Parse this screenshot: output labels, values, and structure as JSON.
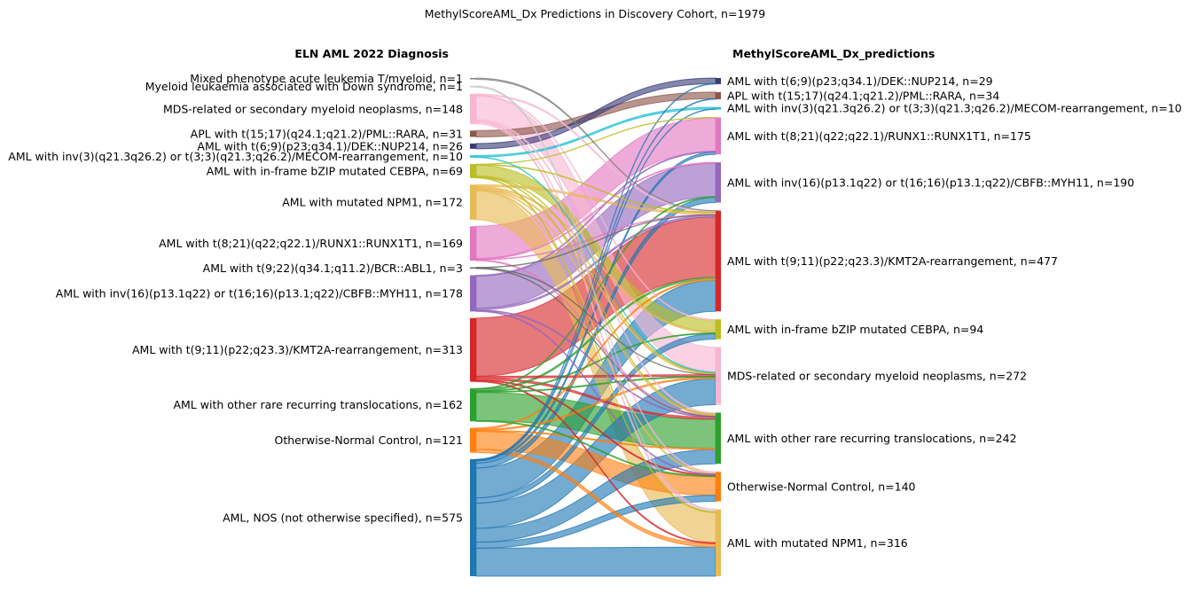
{
  "chart_data": {
    "type": "sankey",
    "title": "MethylScoreAML_Dx Predictions in Discovery Cohort, n=1979",
    "left_header": "ELN AML 2022 Diagnosis",
    "right_header": "MethylScoreAML_Dx_predictions",
    "left_nodes": [
      {
        "id": "MPAL",
        "label": "Mixed phenotype acute leukemia T/myeloid, n=1",
        "n": 1,
        "color": "#7f7f7f"
      },
      {
        "id": "DOWN",
        "label": "Myeloid leukaemia associated with Down syndrome, n=1",
        "n": 1,
        "color": "#c7c7c7"
      },
      {
        "id": "MDS",
        "label": "MDS-related or secondary myeloid neoplasms, n=148",
        "n": 148,
        "color": "#f7b6d2"
      },
      {
        "id": "APL",
        "label": "APL with t(15;17)(q24.1;q21.2)/PML::RARA, n=31",
        "n": 31,
        "color": "#8c564b"
      },
      {
        "id": "DEK",
        "label": "AML with t(6;9)(p23;q34.1)/DEK::NUP214, n=26",
        "n": 26,
        "color": "#393b79"
      },
      {
        "id": "INV3",
        "label": "AML with inv(3)(q21.3q26.2) or t(3;3)(q21.3;q26.2)/MECOM-rearrangement, n=10",
        "n": 10,
        "color": "#17becf"
      },
      {
        "id": "CEBPA",
        "label": "AML with in-frame bZIP mutated CEBPA, n=69",
        "n": 69,
        "color": "#bcbd22"
      },
      {
        "id": "NPM1",
        "label": "AML with mutated NPM1, n=172",
        "n": 172,
        "color": "#e7ba52"
      },
      {
        "id": "RUNX",
        "label": "AML with t(8;21)(q22;q22.1)/RUNX1::RUNX1T1, n=169",
        "n": 169,
        "color": "#e377c2"
      },
      {
        "id": "BCR",
        "label": "AML with t(9;22)(q34.1;q11.2)/BCR::ABL1, n=3",
        "n": 3,
        "color": "#636363"
      },
      {
        "id": "CBFB",
        "label": "AML with inv(16)(p13.1q22) or t(16;16)(p13.1;q22)/CBFB::MYH11, n=178",
        "n": 178,
        "color": "#9467bd"
      },
      {
        "id": "KMT2A",
        "label": "AML with t(9;11)(p22;q23.3)/KMT2A-rearrangement, n=313",
        "n": 313,
        "color": "#d62728"
      },
      {
        "id": "RARE",
        "label": "AML with other rare recurring translocations, n=162",
        "n": 162,
        "color": "#2ca02c"
      },
      {
        "id": "CTRL",
        "label": "Otherwise-Normal Control, n=121",
        "n": 121,
        "color": "#ff7f0e"
      },
      {
        "id": "NOS",
        "label": "AML, NOS (not otherwise specified), n=575",
        "n": 575,
        "color": "#1f77b4"
      }
    ],
    "right_nodes": [
      {
        "id": "DEK",
        "label": "AML with t(6;9)(p23;q34.1)/DEK::NUP214, n=29",
        "n": 29,
        "color": "#393b79"
      },
      {
        "id": "APL",
        "label": "APL with t(15;17)(q24.1;q21.2)/PML::RARA, n=34",
        "n": 34,
        "color": "#8c564b"
      },
      {
        "id": "INV3",
        "label": "AML with inv(3)(q21.3q26.2) or t(3;3)(q21.3;q26.2)/MECOM-rearrangement, n=10",
        "n": 10,
        "color": "#17becf"
      },
      {
        "id": "RUNX",
        "label": "AML with t(8;21)(q22;q22.1)/RUNX1::RUNX1T1, n=175",
        "n": 175,
        "color": "#e377c2"
      },
      {
        "id": "CBFB",
        "label": "AML with inv(16)(p13.1q22) or t(16;16)(p13.1;q22)/CBFB::MYH11, n=190",
        "n": 190,
        "color": "#9467bd"
      },
      {
        "id": "KMT2A",
        "label": "AML with t(9;11)(p22;q23.3)/KMT2A-rearrangement, n=477",
        "n": 477,
        "color": "#d62728"
      },
      {
        "id": "CEBPA",
        "label": "AML with in-frame bZIP mutated CEBPA, n=94",
        "n": 94,
        "color": "#bcbd22"
      },
      {
        "id": "MDS",
        "label": "MDS-related or secondary myeloid neoplasms, n=272",
        "n": 272,
        "color": "#f7b6d2"
      },
      {
        "id": "RARE",
        "label": "AML with other rare recurring translocations, n=242",
        "n": 242,
        "color": "#2ca02c"
      },
      {
        "id": "CTRL",
        "label": "Otherwise-Normal Control, n=140",
        "n": 140,
        "color": "#ff7f0e"
      },
      {
        "id": "NPM1",
        "label": "AML with mutated NPM1, n=316",
        "n": 316,
        "color": "#e7ba52"
      }
    ],
    "links": [
      [
        "MPAL",
        "KMT2A",
        1
      ],
      [
        "DOWN",
        "NPM1",
        1
      ],
      [
        "MDS",
        "MDS",
        118
      ],
      [
        "MDS",
        "KMT2A",
        6
      ],
      [
        "MDS",
        "NPM1",
        10
      ],
      [
        "MDS",
        "RARE",
        6
      ],
      [
        "MDS",
        "CEBPA",
        4
      ],
      [
        "MDS",
        "CTRL",
        4
      ],
      [
        "APL",
        "APL",
        31
      ],
      [
        "DEK",
        "DEK",
        26
      ],
      [
        "INV3",
        "INV3",
        8
      ],
      [
        "INV3",
        "MDS",
        2
      ],
      [
        "CEBPA",
        "CEBPA",
        54
      ],
      [
        "CEBPA",
        "NPM1",
        4
      ],
      [
        "CEBPA",
        "RUNX",
        2
      ],
      [
        "CEBPA",
        "MDS",
        3
      ],
      [
        "CEBPA",
        "RARE",
        3
      ],
      [
        "CEBPA",
        "KMT2A",
        3
      ],
      [
        "NPM1",
        "NPM1",
        142
      ],
      [
        "NPM1",
        "CEBPA",
        6
      ],
      [
        "NPM1",
        "KMT2A",
        8
      ],
      [
        "NPM1",
        "MDS",
        6
      ],
      [
        "NPM1",
        "RARE",
        4
      ],
      [
        "NPM1",
        "CTRL",
        6
      ],
      [
        "RUNX",
        "RUNX",
        158
      ],
      [
        "RUNX",
        "CBFB",
        4
      ],
      [
        "RUNX",
        "KMT2A",
        3
      ],
      [
        "RUNX",
        "RARE",
        4
      ],
      [
        "BCR",
        "KMT2A",
        1
      ],
      [
        "BCR",
        "MDS",
        1
      ],
      [
        "BCR",
        "RARE",
        1
      ],
      [
        "CBFB",
        "CBFB",
        158
      ],
      [
        "CBFB",
        "KMT2A",
        8
      ],
      [
        "CBFB",
        "RUNX",
        4
      ],
      [
        "CBFB",
        "RARE",
        4
      ],
      [
        "CBFB",
        "CTRL",
        4
      ],
      [
        "KMT2A",
        "KMT2A",
        286
      ],
      [
        "KMT2A",
        "MDS",
        8
      ],
      [
        "KMT2A",
        "RARE",
        9
      ],
      [
        "KMT2A",
        "CTRL",
        5
      ],
      [
        "KMT2A",
        "NPM1",
        5
      ],
      [
        "RARE",
        "RARE",
        138
      ],
      [
        "RARE",
        "KMT2A",
        8
      ],
      [
        "RARE",
        "CBFB",
        4
      ],
      [
        "RARE",
        "CEBPA",
        4
      ],
      [
        "RARE",
        "MDS",
        4
      ],
      [
        "RARE",
        "CTRL",
        4
      ],
      [
        "CTRL",
        "CTRL",
        88
      ],
      [
        "CTRL",
        "NPM1",
        16
      ],
      [
        "CTRL",
        "KMT2A",
        6
      ],
      [
        "CTRL",
        "MDS",
        6
      ],
      [
        "CTRL",
        "RARE",
        5
      ],
      [
        "NOS",
        "DEK",
        3
      ],
      [
        "NOS",
        "APL",
        3
      ],
      [
        "NOS",
        "INV3",
        2
      ],
      [
        "NOS",
        "RUNX",
        11
      ],
      [
        "NOS",
        "CBFB",
        24
      ],
      [
        "NOS",
        "KMT2A",
        147
      ],
      [
        "NOS",
        "CEBPA",
        26
      ],
      [
        "NOS",
        "MDS",
        124
      ],
      [
        "NOS",
        "RARE",
        68
      ],
      [
        "NOS",
        "CTRL",
        29
      ],
      [
        "NOS",
        "NPM1",
        138
      ]
    ]
  }
}
